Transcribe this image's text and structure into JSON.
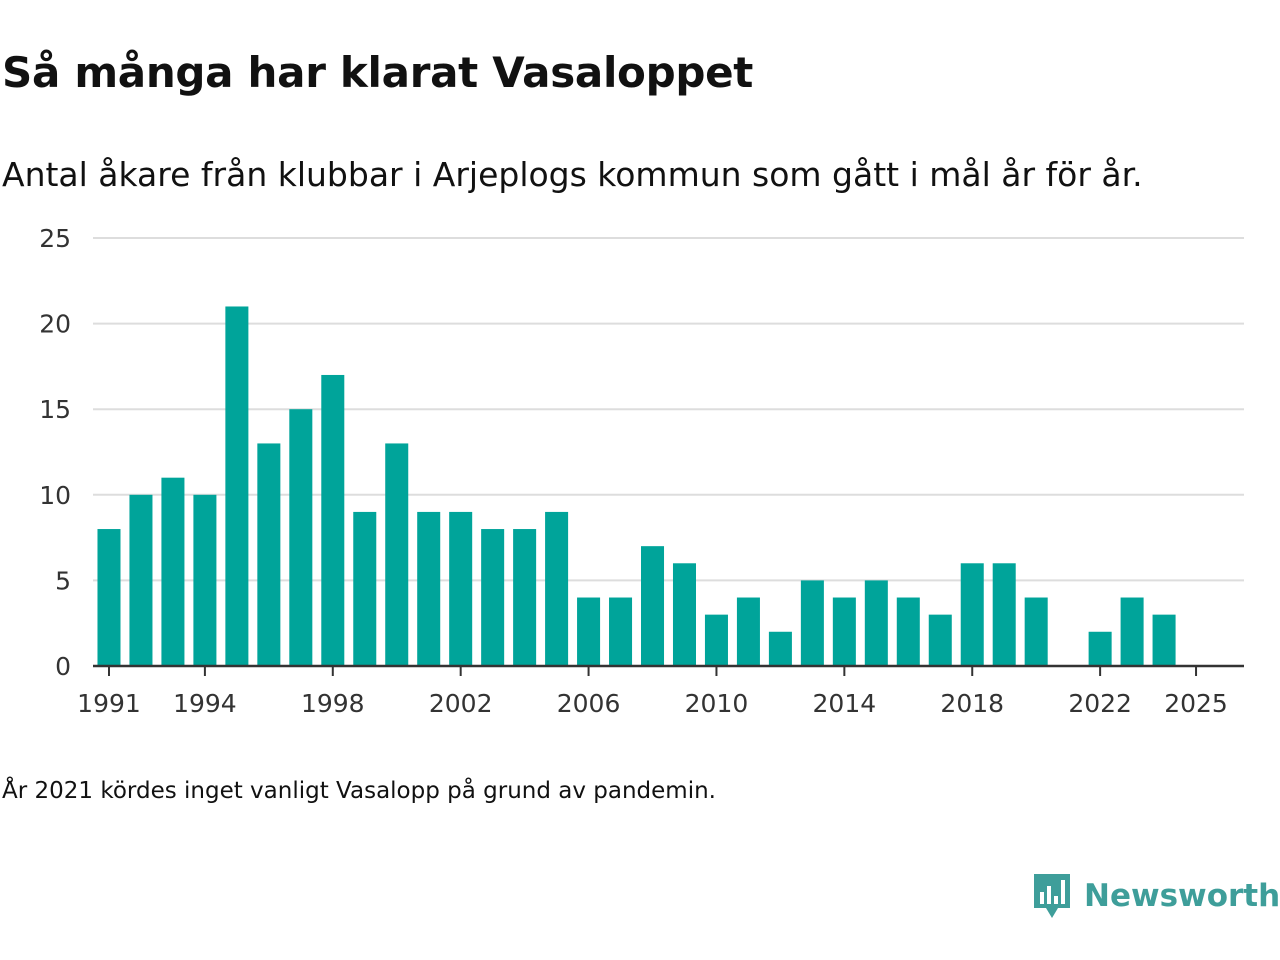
{
  "header": {
    "title": "Så många har klarat Vasaloppet",
    "subtitle": "Antal åkare från klubbar i Arjeplogs kommun som gått i mål år för år."
  },
  "footer": {
    "note": "År 2021 kördes inget vanligt Vasalopp på grund av pandemin.",
    "brand": "Newsworthy"
  },
  "colors": {
    "bar": "#00a49a",
    "grid": "#dddddd",
    "axis": "#333333",
    "brand": "#3e9e9a"
  },
  "chart_data": {
    "type": "bar",
    "title": "Så många har klarat Vasaloppet",
    "subtitle": "Antal åkare från klubbar i Arjeplogs kommun som gått i mål år för år.",
    "xlabel": "",
    "ylabel": "",
    "categories": [
      1991,
      1992,
      1993,
      1994,
      1995,
      1996,
      1997,
      1998,
      1999,
      2000,
      2001,
      2002,
      2003,
      2004,
      2005,
      2006,
      2007,
      2008,
      2009,
      2010,
      2011,
      2012,
      2013,
      2014,
      2015,
      2016,
      2017,
      2018,
      2019,
      2020,
      2021,
      2022,
      2023,
      2024
    ],
    "values": [
      8,
      10,
      11,
      10,
      21,
      13,
      15,
      17,
      9,
      13,
      9,
      9,
      8,
      8,
      9,
      4,
      4,
      7,
      6,
      3,
      4,
      2,
      5,
      4,
      5,
      4,
      3,
      6,
      6,
      4,
      null,
      2,
      4,
      3
    ],
    "x_ticks": [
      "1991",
      "1994",
      "1998",
      "2002",
      "2006",
      "2010",
      "2014",
      "2018",
      "2022",
      "2025"
    ],
    "xlim": [
      1990.5,
      2026.5
    ],
    "ylim": [
      0,
      25
    ],
    "y_ticks": [
      "0",
      "5",
      "10",
      "15",
      "20",
      "25"
    ],
    "grid": true
  }
}
